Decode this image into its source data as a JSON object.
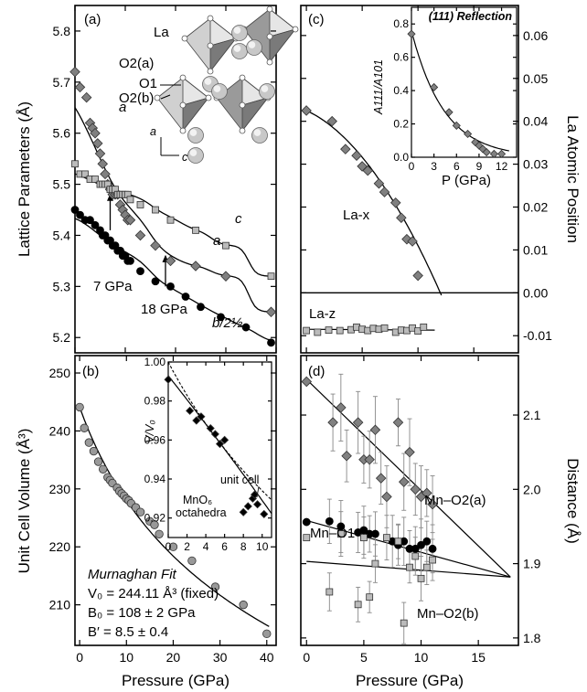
{
  "chart_data": [
    {
      "panel": "(a)",
      "type": "scatter",
      "ylabel": "Lattice Parameters (Å)",
      "xlim": [
        0,
        40
      ],
      "ylim": [
        5.17,
        5.85
      ],
      "yticks": [
        "5.2",
        "5.3",
        "5.4",
        "5.5",
        "5.6",
        "5.7",
        "5.8"
      ],
      "series": [
        {
          "name": "a",
          "marker": "diamond",
          "color": "#808080",
          "x": [
            0,
            1,
            2.3,
            3,
            3.5,
            4,
            4.5,
            5,
            5.5,
            6,
            6.5,
            7,
            7.5,
            8,
            8.5,
            9,
            9.5,
            10,
            10.5,
            11,
            13,
            16,
            19,
            24,
            30,
            39
          ],
          "y": [
            5.72,
            5.69,
            5.67,
            5.62,
            5.61,
            5.6,
            5.58,
            5.56,
            5.54,
            5.52,
            5.5,
            5.49,
            5.48,
            5.48,
            5.48,
            5.46,
            5.45,
            5.44,
            5.43,
            5.43,
            5.4,
            5.38,
            5.35,
            5.34,
            5.32,
            5.25
          ]
        },
        {
          "name": "c",
          "marker": "square",
          "color": "#bbbbbb",
          "x": [
            0,
            1,
            2,
            3,
            4,
            5,
            5.5,
            6,
            6.5,
            7,
            7.5,
            8,
            8.5,
            9,
            9.5,
            10,
            10.5,
            11,
            13,
            16,
            19,
            24,
            30,
            39
          ],
          "y": [
            5.54,
            5.52,
            5.52,
            5.51,
            5.51,
            5.5,
            5.5,
            5.5,
            5.5,
            5.49,
            5.49,
            5.49,
            5.48,
            5.48,
            5.48,
            5.48,
            5.48,
            5.47,
            5.46,
            5.45,
            5.43,
            5.41,
            5.38,
            5.32
          ]
        },
        {
          "name": "b/2½",
          "marker": "circle",
          "color": "#000000",
          "x": [
            0,
            1,
            2,
            3,
            4,
            5,
            5.5,
            6,
            6.5,
            7,
            7.5,
            8,
            8.5,
            9,
            9.5,
            10,
            10.5,
            11,
            13,
            16,
            19,
            22,
            25,
            29,
            34,
            39
          ],
          "y": [
            5.45,
            5.44,
            5.43,
            5.43,
            5.42,
            5.41,
            5.4,
            5.4,
            5.39,
            5.39,
            5.38,
            5.38,
            5.37,
            5.37,
            5.36,
            5.36,
            5.35,
            5.35,
            5.33,
            5.31,
            5.3,
            5.28,
            5.26,
            5.24,
            5.22,
            5.19
          ]
        }
      ],
      "annotations": [
        "a",
        "a",
        "c",
        "b/2½",
        "7 GPa",
        "18 GPa"
      ],
      "inset_labels": [
        "La",
        "O2(a)",
        "O1",
        "O2(b)",
        "a",
        "c"
      ]
    },
    {
      "panel": "(b)",
      "type": "scatter",
      "xlabel": "Pressure (GPa)",
      "ylabel": "Unit Cell Volume (Å³)",
      "xlim": [
        -1,
        42
      ],
      "ylim": [
        203,
        253
      ],
      "xticks": [
        "0",
        "10",
        "20",
        "30",
        "40"
      ],
      "yticks": [
        "210",
        "220",
        "230",
        "240",
        "250"
      ],
      "series": [
        {
          "name": "V",
          "marker": "circle",
          "color": "#999999",
          "x": [
            0,
            1,
            2,
            3,
            4,
            5,
            6,
            6.5,
            7,
            8,
            8.5,
            9,
            9.5,
            10,
            10.5,
            11,
            12,
            13,
            15,
            16,
            17,
            20,
            24,
            29,
            35,
            40
          ],
          "y": [
            244.1,
            240.5,
            238,
            236.5,
            234.7,
            233.4,
            232,
            231.5,
            231,
            230.2,
            229.6,
            229.2,
            228.8,
            228.3,
            228,
            227.5,
            226.8,
            226,
            224.4,
            223.8,
            222.2,
            220,
            217.6,
            213.1,
            210,
            205
          ]
        }
      ],
      "fit_labels": [
        "Murnaghan Fit",
        "V₀ = 244.11 Å³ (fixed)",
        "B₀ = 108 ± 2 GPa",
        "B′ = 8.5 ± 0.4"
      ],
      "inset": {
        "xlim": [
          0,
          11
        ],
        "ylim": [
          0.91,
          1.0
        ],
        "xticks": [
          "0",
          "2",
          "4",
          "6",
          "8",
          "10"
        ],
        "yticks": [
          "0.92",
          "0.94",
          "0.96",
          "0.98",
          "1.00"
        ],
        "ylabel": "V/V₀",
        "labels": [
          "unit cell",
          "MnO₆",
          "octahedra"
        ],
        "series": [
          {
            "name": "MnO₆ octahedra",
            "marker": "diamond",
            "color": "#000000",
            "x": [
              0,
              2.3,
              3,
              3.5,
              4.5,
              5,
              5.5,
              6,
              8,
              8.5,
              9,
              9.2,
              9.5,
              10.2
            ],
            "y": [
              0.991,
              0.975,
              0.97,
              0.972,
              0.966,
              0.963,
              0.958,
              0.96,
              0.923,
              0.926,
              0.93,
              0.932,
              0.927,
              0.922
            ]
          }
        ]
      }
    },
    {
      "panel": "(c)",
      "type": "scatter",
      "ylabel": "La Atomic Position",
      "xlim": [
        -0.5,
        19
      ],
      "ylim": [
        -0.014,
        0.067
      ],
      "yticks": [
        "-0.01",
        "0.00",
        "0.01",
        "0.02",
        "0.03",
        "0.04",
        "0.05",
        "0.06"
      ],
      "series": [
        {
          "name": "La-x",
          "marker": "diamond",
          "color": "#808080",
          "x": [
            0,
            2.3,
            3.5,
            4.5,
            5,
            5.5,
            6.5,
            7,
            8,
            8.5,
            9,
            9.5,
            10
          ],
          "y": [
            0.0425,
            0.04,
            0.0335,
            0.032,
            0.0295,
            0.0285,
            0.0255,
            0.0235,
            0.021,
            0.0175,
            0.0125,
            0.012,
            0.004
          ]
        },
        {
          "name": "La-z",
          "marker": "square",
          "color": "#bbbbbb",
          "x": [
            0,
            1,
            2,
            3,
            4,
            4.5,
            5,
            5.5,
            6,
            6.5,
            7,
            8,
            8.5,
            9,
            9.5,
            10,
            10.5
          ],
          "y": [
            -0.0088,
            -0.0092,
            -0.0087,
            -0.0088,
            -0.0086,
            -0.008,
            -0.0085,
            -0.0088,
            -0.0083,
            -0.0085,
            -0.0082,
            -0.0092,
            -0.0087,
            -0.0088,
            -0.0082,
            -0.0089,
            -0.008
          ]
        }
      ],
      "inset": {
        "title": "(111) Reflection",
        "xlim": [
          0,
          14
        ],
        "ylim": [
          0,
          0.9
        ],
        "xticks": [
          "0",
          "3",
          "6",
          "9",
          "12"
        ],
        "yticks": [
          "0.0",
          "0.2",
          "0.4",
          "0.6",
          "0.8"
        ],
        "xlabel": "P (GPa)",
        "ylabel": "A111/A101",
        "series": [
          {
            "name": "(111) Reflection",
            "marker": "diamond",
            "color": "#808080",
            "x": [
              0,
              3,
              5,
              6,
              7.5,
              8.5,
              9,
              9.5,
              10,
              11,
              12
            ],
            "y": [
              0.74,
              0.42,
              0.27,
              0.19,
              0.14,
              0.09,
              0.07,
              0.05,
              0.03,
              0.02,
              0.02
            ]
          }
        ]
      }
    },
    {
      "panel": "(d)",
      "type": "scatter",
      "xlabel": "Pressure (GPa)",
      "ylabel": "Distance (Å)",
      "xlim": [
        -0.5,
        18.5
      ],
      "ylim": [
        1.79,
        2.18
      ],
      "xticks": [
        "0",
        "5",
        "10",
        "15"
      ],
      "yticks": [
        "1.8",
        "1.9",
        "2.0",
        "2.1"
      ],
      "series": [
        {
          "name": "Mn–O2(a)",
          "marker": "diamond",
          "color": "#808080",
          "x": [
            0,
            2.3,
            3,
            3.5,
            4.5,
            5,
            5.5,
            6,
            6.5,
            7,
            8,
            8.5,
            9,
            9.5,
            10,
            10.5,
            11
          ],
          "y": [
            2.145,
            2.09,
            2.11,
            2.045,
            2.09,
            2.04,
            2.04,
            2.08,
            2.015,
            1.99,
            2.09,
            2.01,
            2.05,
            2.0,
            1.99,
            1.995,
            1.98
          ]
        },
        {
          "name": "Mn–O1",
          "marker": "circle",
          "color": "#000000",
          "x": [
            0,
            2,
            3,
            4.5,
            5,
            5.5,
            6,
            7.5,
            8,
            8.5,
            9,
            9.5,
            10,
            10.5,
            11
          ],
          "y": [
            1.956,
            1.957,
            1.95,
            1.942,
            1.945,
            1.94,
            1.94,
            1.93,
            1.925,
            1.93,
            1.92,
            1.92,
            1.925,
            1.93,
            1.92
          ]
        },
        {
          "name": "Mn–O2(b)",
          "marker": "square",
          "color": "#bbbbbb",
          "x": [
            0,
            2,
            3,
            4.5,
            5,
            5.5,
            6,
            7,
            8,
            8.5,
            9,
            9.5,
            10,
            10.5,
            11
          ],
          "y": [
            1.935,
            1.862,
            1.94,
            1.845,
            1.935,
            1.855,
            1.9,
            1.935,
            1.93,
            1.82,
            1.895,
            1.91,
            1.88,
            1.895,
            1.905
          ]
        }
      ],
      "fit_lines": [
        {
          "name": "Mn–O2(a)",
          "x": [
            0,
            17.8
          ],
          "y": [
            2.148,
            1.882
          ]
        },
        {
          "name": "Mn–O1",
          "x": [
            0,
            17.8
          ],
          "y": [
            1.958,
            1.882
          ]
        },
        {
          "name": "Mn–O2(b)",
          "x": [
            0,
            17.8
          ],
          "y": [
            1.903,
            1.882
          ]
        }
      ]
    }
  ]
}
